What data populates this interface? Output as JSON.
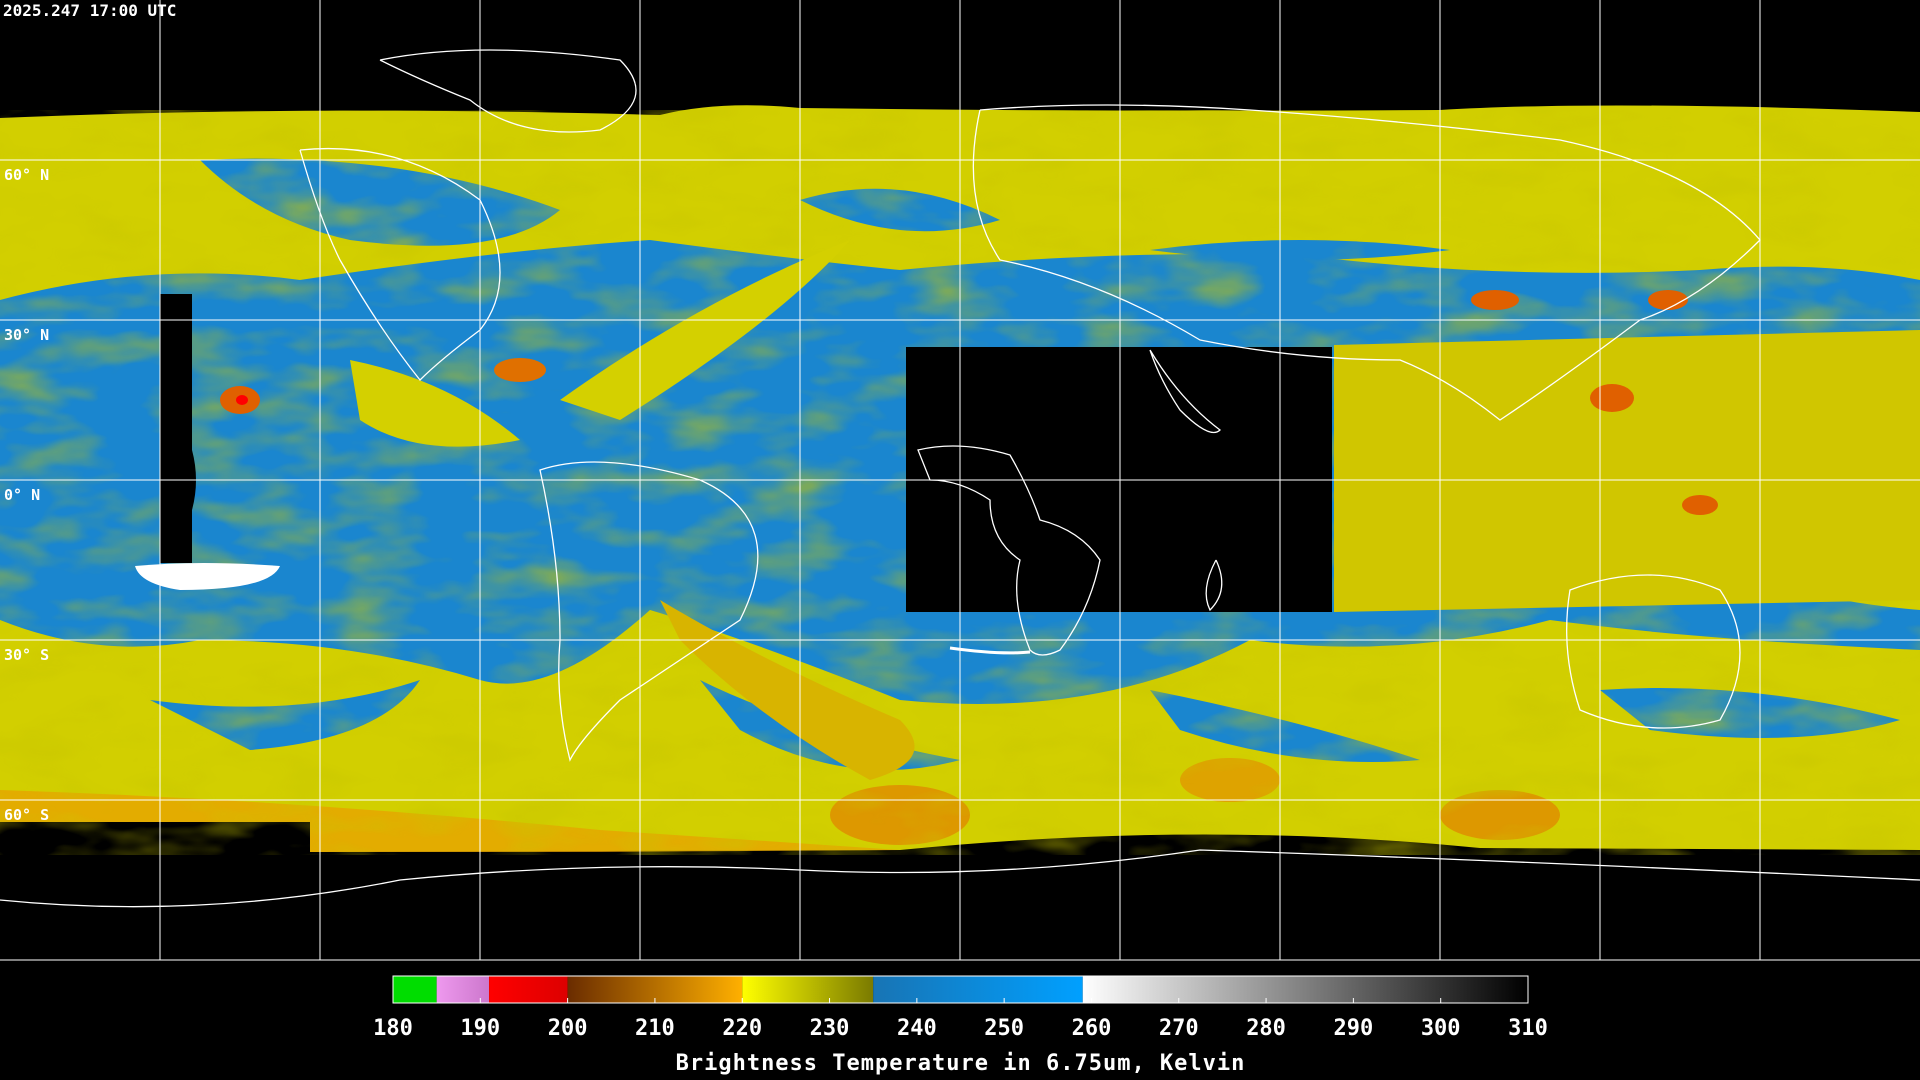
{
  "header": {
    "timestamp": "2025.247 17:00 UTC"
  },
  "map": {
    "latitude_labels": [
      "60° N",
      "30° N",
      "0° N",
      "30° S",
      "60° S"
    ]
  },
  "colorbar": {
    "title": "Brightness Temperature in 6.75um, Kelvin",
    "range": [
      180,
      310
    ],
    "ticks": [
      180,
      190,
      200,
      210,
      220,
      230,
      240,
      250,
      260,
      270,
      280,
      290,
      300,
      310
    ],
    "segments": [
      {
        "from": 180,
        "to": 185,
        "color_start": "#00dd00",
        "color_end": "#00dd00"
      },
      {
        "from": 185,
        "to": 191,
        "color_start": "#ee99ee",
        "color_end": "#cc77cc"
      },
      {
        "from": 191,
        "to": 200,
        "color_start": "#ff0000",
        "color_end": "#dd0000"
      },
      {
        "from": 200,
        "to": 220,
        "color_start": "#6a2c00",
        "color_end": "#ffb000"
      },
      {
        "from": 220,
        "to": 235,
        "color_start": "#ffff00",
        "color_end": "#7a7a00"
      },
      {
        "from": 235,
        "to": 259,
        "color_start": "#1874b4",
        "color_end": "#00a0ff"
      },
      {
        "from": 259,
        "to": 310,
        "color_start": "#ffffff",
        "color_end": "#000000"
      }
    ]
  }
}
